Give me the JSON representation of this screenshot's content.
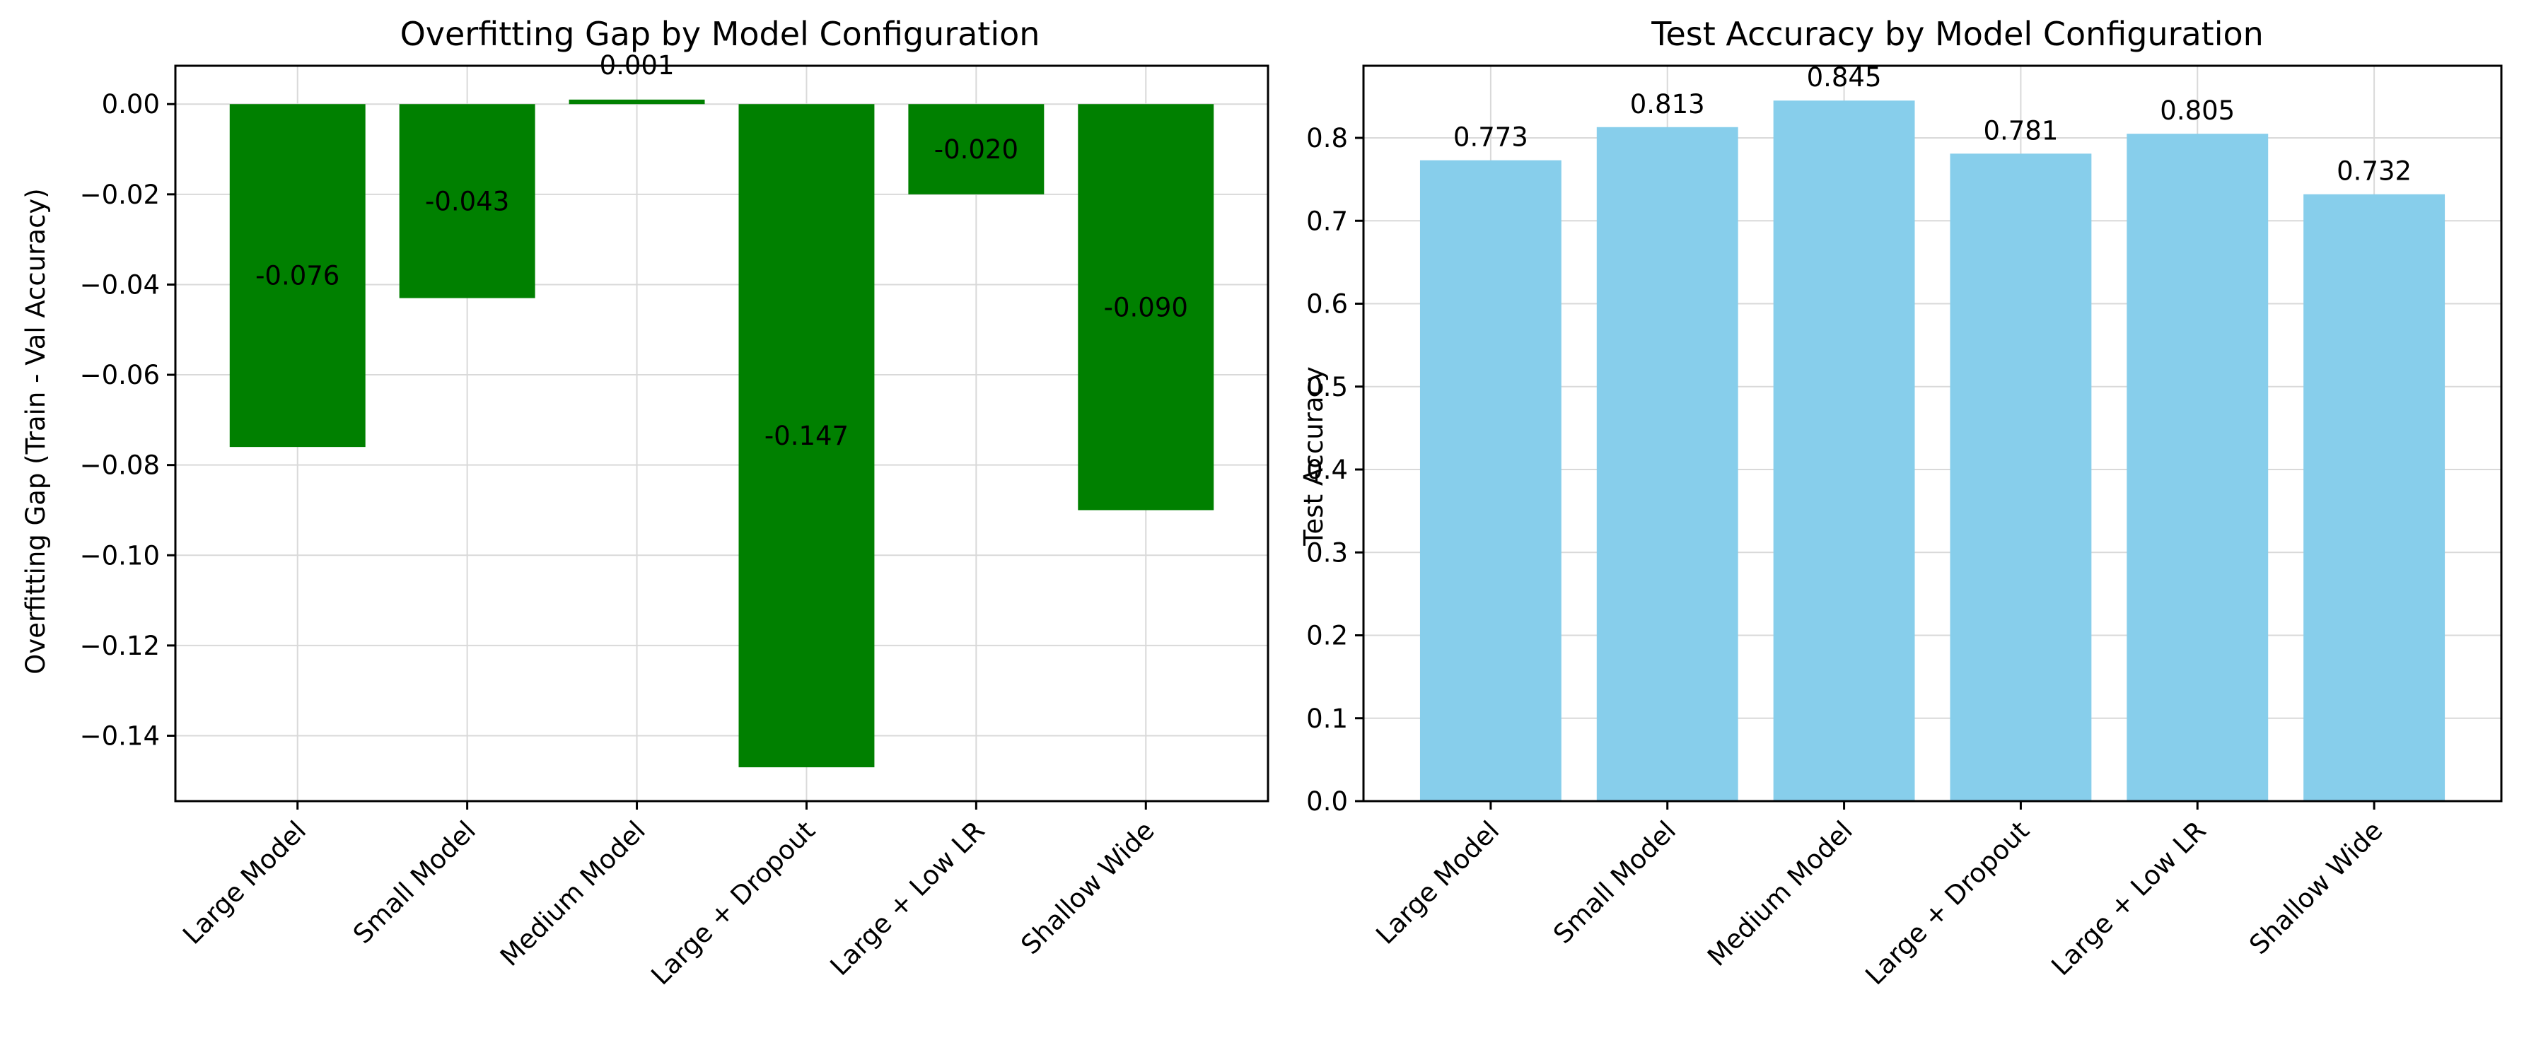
{
  "chart_data": [
    {
      "type": "bar",
      "title": "Overfitting Gap by Model Configuration",
      "xlabel": "",
      "ylabel": "Overfitting Gap (Train - Val Accuracy)",
      "categories": [
        "Large Model",
        "Small Model",
        "Medium Model",
        "Large + Dropout",
        "Large + Low LR",
        "Shallow Wide"
      ],
      "values": [
        -0.076,
        -0.043,
        0.001,
        -0.147,
        -0.02,
        -0.09
      ],
      "value_labels": [
        "-0.076",
        "-0.043",
        "0.001",
        "-0.147",
        "-0.020",
        "-0.090"
      ],
      "ylim": [
        -0.1545,
        0.0085
      ],
      "yticks": [
        0.0,
        -0.02,
        -0.04,
        -0.06,
        -0.08,
        -0.1,
        -0.12,
        -0.14
      ],
      "ytick_labels": [
        "0.00",
        "−0.02",
        "−0.04",
        "−0.06",
        "−0.08",
        "−0.10",
        "−0.12",
        "−0.14"
      ],
      "bar_color": "#008000",
      "grid": true
    },
    {
      "type": "bar",
      "title": "Test Accuracy by Model Configuration",
      "xlabel": "",
      "ylabel": "Test Accuracy",
      "categories": [
        "Large Model",
        "Small Model",
        "Medium Model",
        "Large + Dropout",
        "Large + Low LR",
        "Shallow Wide"
      ],
      "values": [
        0.773,
        0.813,
        0.845,
        0.781,
        0.805,
        0.732
      ],
      "value_labels": [
        "0.773",
        "0.813",
        "0.845",
        "0.781",
        "0.805",
        "0.732"
      ],
      "ylim": [
        0,
        0.887
      ],
      "yticks": [
        0.0,
        0.1,
        0.2,
        0.3,
        0.4,
        0.5,
        0.6,
        0.7,
        0.8
      ],
      "ytick_labels": [
        "0.0",
        "0.1",
        "0.2",
        "0.3",
        "0.4",
        "0.5",
        "0.6",
        "0.7",
        "0.8"
      ],
      "bar_color": "#87CEEB",
      "grid": true
    }
  ]
}
